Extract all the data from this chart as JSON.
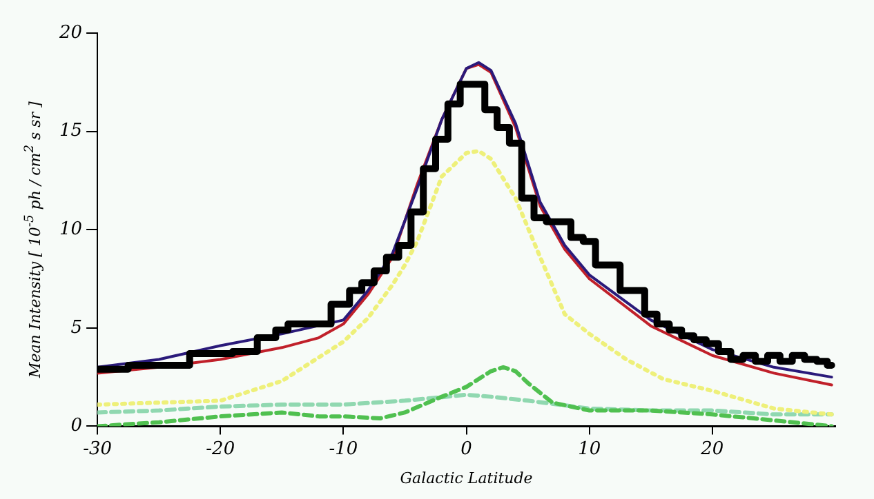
{
  "chart_data": {
    "type": "line",
    "xlabel": "Galactic Latitude",
    "ylabel": "Mean Intensity [ 10$^{-5}$ ph / cm$^{2}$ s sr ]",
    "xlim": [
      -30,
      30
    ],
    "xticks": [
      -30,
      -20,
      -10,
      0,
      10,
      20
    ],
    "ylim": [
      0,
      20
    ],
    "yticks": [
      0,
      5,
      10,
      15,
      20
    ],
    "grid": false,
    "legend": false,
    "marker": "none",
    "series": [
      {
        "type": "step",
        "color": "#000000",
        "x": [
          -30,
          -25,
          -20,
          -18,
          -16,
          -15,
          -14,
          -12,
          -10,
          -9,
          -8,
          -7,
          -6,
          -5,
          -4,
          -3,
          -2,
          -1,
          0,
          1,
          2,
          3,
          4,
          5,
          6,
          7,
          8,
          9,
          10,
          11,
          12,
          13,
          14,
          15,
          16,
          17,
          18,
          19,
          20,
          21,
          22,
          23,
          24,
          25,
          26,
          27,
          28,
          29,
          29.7
        ],
        "values": [
          2.9,
          3.1,
          3.7,
          3.8,
          4.5,
          4.9,
          5.2,
          5.2,
          6.2,
          6.9,
          7.3,
          7.9,
          8.6,
          9.2,
          10.9,
          13.1,
          14.6,
          16.4,
          17.4,
          17.4,
          16.1,
          15.2,
          14.4,
          11.6,
          10.6,
          10.4,
          10.4,
          9.6,
          9.4,
          8.2,
          8.2,
          6.9,
          6.9,
          5.7,
          5.2,
          4.9,
          4.6,
          4.4,
          4.2,
          3.8,
          3.4,
          3.6,
          3.3,
          3.6,
          3.3,
          3.6,
          3.4,
          3.3,
          3.1
        ]
      },
      {
        "color": "#2a1a7a",
        "line_style": "solid",
        "x": [
          -30,
          -25,
          -20,
          -15,
          -10,
          -8,
          -6,
          -4,
          -2,
          0,
          1,
          2,
          4,
          6,
          8,
          10,
          15,
          20,
          25,
          29.7
        ],
        "values": [
          3.0,
          3.4,
          4.1,
          4.7,
          5.4,
          6.9,
          8.8,
          12.1,
          15.6,
          18.2,
          18.5,
          18.1,
          15.4,
          11.4,
          9.2,
          7.7,
          5.4,
          3.9,
          3.0,
          2.5
        ]
      },
      {
        "color": "#c0202a",
        "line_style": "solid",
        "x": [
          -30,
          -25,
          -20,
          -15,
          -12,
          -10,
          -8,
          -6,
          -4,
          -2,
          0,
          1,
          2,
          4,
          6,
          8,
          10,
          15,
          20,
          25,
          29.7
        ],
        "values": [
          2.7,
          3.0,
          3.4,
          4.0,
          4.5,
          5.2,
          6.7,
          8.6,
          12.3,
          15.6,
          18.2,
          18.4,
          18.0,
          15.2,
          11.2,
          9.0,
          7.5,
          5.1,
          3.6,
          2.7,
          2.1
        ]
      },
      {
        "color": "#eef07a",
        "line_style": "dotted",
        "x": [
          -30,
          -25,
          -20,
          -15,
          -10,
          -8,
          -6,
          -5,
          -4,
          -2,
          0,
          1,
          2,
          4,
          6,
          8,
          10,
          13,
          16,
          20,
          25,
          29.7
        ],
        "values": [
          1.1,
          1.2,
          1.3,
          2.3,
          4.3,
          5.5,
          7.2,
          8.2,
          9.4,
          12.7,
          13.9,
          14.0,
          13.6,
          11.6,
          8.6,
          5.7,
          4.7,
          3.4,
          2.4,
          1.8,
          0.9,
          0.6
        ]
      },
      {
        "color": "#50c050",
        "line_style": "dashed",
        "x": [
          -30,
          -25,
          -20,
          -15,
          -12,
          -10,
          -7,
          -5,
          -2,
          0,
          2,
          3,
          4,
          5,
          7,
          10,
          15,
          20,
          25,
          29.7
        ],
        "values": [
          0,
          0.2,
          0.5,
          0.7,
          0.5,
          0.5,
          0.4,
          0.7,
          1.5,
          2.0,
          2.8,
          3.0,
          2.8,
          2.2,
          1.2,
          0.8,
          0.8,
          0.6,
          0.3,
          0
        ]
      },
      {
        "color": "#90d8b0",
        "line_style": "dashed",
        "x": [
          -30,
          -25,
          -20,
          -15,
          -10,
          -5,
          0,
          2,
          5,
          10,
          15,
          20,
          25,
          29.7
        ],
        "values": [
          0.7,
          0.8,
          1.0,
          1.1,
          1.1,
          1.3,
          1.6,
          1.5,
          1.3,
          0.9,
          0.8,
          0.8,
          0.6,
          0.6
        ]
      }
    ]
  }
}
